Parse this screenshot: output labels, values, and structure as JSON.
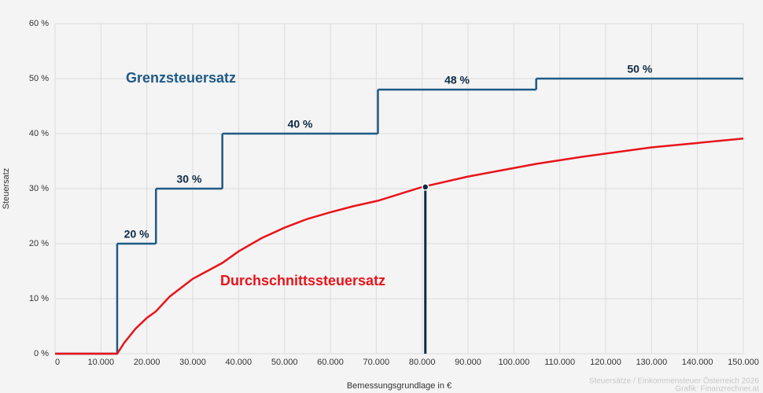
{
  "chart_data": {
    "type": "line",
    "x_label": "Bemessungsgrundlage in €",
    "y_label": "Steuersatz",
    "source": [
      "Steuersätze / Einkommensteuer Österreich 2026",
      "Grafik: Finanzrechner.at"
    ],
    "xlim": [
      0,
      150000
    ],
    "ylim": [
      0,
      60
    ],
    "grid": true,
    "xticks": [
      0,
      {
        "value": 10000,
        "label": "10.000"
      },
      {
        "value": 20000,
        "label": "20.000"
      },
      {
        "value": 30000,
        "label": "30.000"
      },
      {
        "value": 40000,
        "label": "40.000"
      },
      {
        "value": 50000,
        "label": "50.000"
      },
      {
        "value": 60000,
        "label": "60.000"
      },
      {
        "value": 70000,
        "label": "70.000"
      },
      {
        "value": 80000,
        "label": "80.000"
      },
      {
        "value": 90000,
        "label": "90.000"
      },
      {
        "value": 100000,
        "label": "100.000"
      },
      {
        "value": 110000,
        "label": "110.000"
      },
      {
        "value": 120000,
        "label": "120.000"
      },
      {
        "value": 130000,
        "label": "130.000"
      },
      {
        "value": 140000,
        "label": "140.000"
      },
      {
        "value": 150000,
        "label": "150.000"
      }
    ],
    "yticks": [
      {
        "value": 0,
        "label": "0 %"
      },
      {
        "value": 10,
        "label": "10 %"
      },
      {
        "value": 20,
        "label": "20 %"
      },
      {
        "value": 30,
        "label": "30 %"
      },
      {
        "value": 40,
        "label": "40 %"
      },
      {
        "value": 50,
        "label": "50 %"
      },
      {
        "value": 60,
        "label": "60 %"
      }
    ],
    "series": [
      {
        "name": "Grenzsteuersatz",
        "color": "#1f5a85",
        "step": true,
        "x": [
          0,
          13539,
          21992,
          36458,
          70365,
          104859
        ],
        "values": [
          0,
          20,
          30,
          40,
          48,
          50
        ],
        "value_labels": [
          null,
          "20 %",
          "30 %",
          "40 %",
          "48 %",
          "50 %"
        ]
      },
      {
        "name": "Durchschnittssteuersatz",
        "color": "#e8141a",
        "step": false,
        "x": [
          0,
          13539,
          15000,
          17500,
          20000,
          21992,
          25000,
          30000,
          36458,
          40000,
          45000,
          50000,
          55000,
          60000,
          65000,
          70365,
          80000,
          90000,
          104859,
          115000,
          130000,
          150000
        ],
        "values": [
          0,
          0,
          1.9,
          4.5,
          6.5,
          7.7,
          10.4,
          13.6,
          16.5,
          18.6,
          21.0,
          22.9,
          24.5,
          25.7,
          26.8,
          27.8,
          30.3,
          32.2,
          34.5,
          35.8,
          37.5,
          39.1
        ]
      }
    ],
    "marker": {
      "x": 80700,
      "y": 30.3,
      "color": "#0d2a45"
    }
  }
}
